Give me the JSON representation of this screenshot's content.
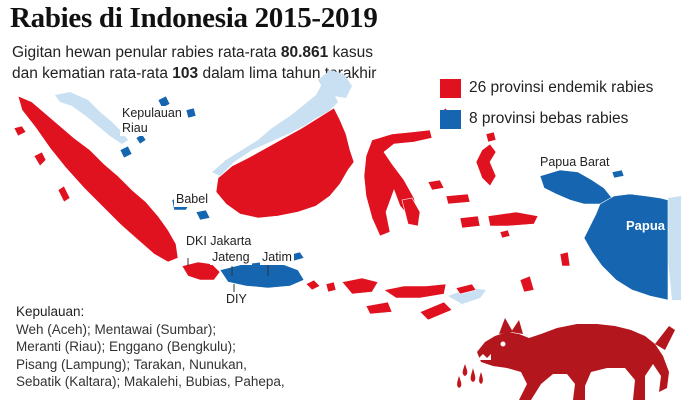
{
  "title": "Rabies di Indonesia 2015-2019",
  "subtitle": {
    "line1_prefix": "Gigitan hewan penular rabies rata-rata ",
    "bite_count": "80.861",
    "line1_suffix": " kasus",
    "line2_prefix": "dan kematian rata-rata ",
    "death_count": "103",
    "line2_suffix": " dalam lima tahun terakhir"
  },
  "legend": [
    {
      "color": "#e1121f",
      "label": "26 provinsi endemik rabies"
    },
    {
      "color": "#1565b0",
      "label": "8 provinsi bebas rabies"
    }
  ],
  "colors": {
    "endemic": "#e1121f",
    "free": "#1565b0",
    "neighbor": "#c8e0f2",
    "dog": "#b3161c",
    "blood": "#c4141b"
  },
  "map_labels": {
    "kepulauan_riau_line1": "Kepulauan",
    "kepulauan_riau_line2": "Riau",
    "babel": "Babel",
    "dki_jakarta": "DKI Jakarta",
    "jateng": "Jateng",
    "jatim": "Jatim",
    "diy": "DIY",
    "papua_barat": "Papua Barat",
    "papua": "Papua"
  },
  "islands": {
    "heading": "Kepulauan:",
    "lines": [
      "Weh (Aceh); Mentawai (Sumbar);",
      "Meranti (Riau); Enggano (Bengkulu);",
      "Pisang (Lampung); Tarakan, Nunukan,",
      "Sebatik (Kaltara); Makalehi, Bubias, Pahepa,"
    ]
  },
  "icons": [
    "dog-icon"
  ]
}
